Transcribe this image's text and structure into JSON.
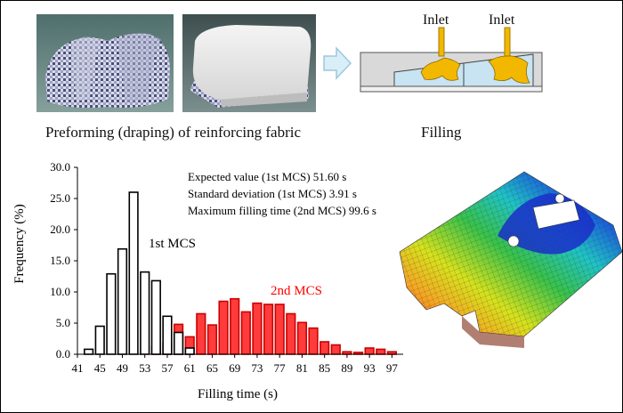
{
  "figure": {
    "preforming_caption": "Preforming (draping) of reinforcing fabric",
    "filling_caption": "Filling",
    "inlet_labels": [
      "Inlet",
      "Inlet"
    ]
  },
  "chart_data": {
    "type": "bar",
    "xlabel": "Filling time (s)",
    "ylabel": "Frequency (%)",
    "ylim": [
      0,
      30
    ],
    "yticks": [
      "0.0",
      "5.0",
      "10.0",
      "15.0",
      "20.0",
      "25.0",
      "30.0"
    ],
    "xticks": [
      "41",
      "45",
      "49",
      "53",
      "57",
      "61",
      "65",
      "69",
      "73",
      "77",
      "81",
      "85",
      "89",
      "93",
      "97"
    ],
    "xlim": [
      41,
      99
    ],
    "bin_width": 2,
    "series": [
      {
        "name": "1st MCS",
        "color": "#ffffff",
        "edge": "#000000",
        "x": [
          43,
          45,
          47,
          49,
          51,
          53,
          55,
          57,
          59,
          61
        ],
        "values": [
          0.8,
          4.5,
          12.9,
          16.9,
          26.0,
          13.2,
          11.8,
          6.1,
          3.5,
          1.0
        ]
      },
      {
        "name": "2nd MCS",
        "color": "#ff3b3b",
        "edge": "#cc0000",
        "x": [
          55,
          57,
          59,
          61,
          63,
          65,
          67,
          69,
          71,
          73,
          75,
          77,
          79,
          81,
          83,
          85,
          87,
          89,
          91,
          93,
          95,
          97
        ],
        "values": [
          1.2,
          1.8,
          4.8,
          2.8,
          6.5,
          4.7,
          8.5,
          8.9,
          6.8,
          8.2,
          8.0,
          8.0,
          6.5,
          5.1,
          4.2,
          2.0,
          1.5,
          0.4,
          0.3,
          1.0,
          0.8,
          0.4
        ]
      }
    ],
    "annotations": [
      "Expected value (1st MCS) 51.60 s",
      "Standard deviation (1st MCS) 3.91 s",
      "Maximum filling time (2nd MCS) 99.6 s"
    ],
    "series_labels": [
      "1st MCS",
      "2nd MCS"
    ],
    "label_colors": [
      "#000000",
      "#ff0000"
    ]
  }
}
